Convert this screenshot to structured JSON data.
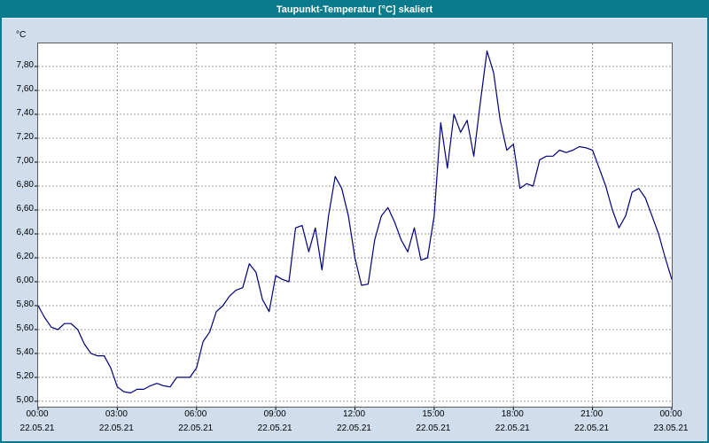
{
  "title_bar": {
    "title": "Taupunkt-Temperatur [°C] skaliert"
  },
  "colors": {
    "title_bar_bg": "#0a7b8c",
    "window_bg": "#cfdded",
    "plot_bg": "#ffffff",
    "line": "#000080",
    "grid": "#9b9b9b",
    "axis": "#000000"
  },
  "chart_data": {
    "type": "line",
    "title": "Taupunkt-Temperatur [°C] skaliert",
    "ylabel": "°C",
    "xlabel": "",
    "grid": "dashed",
    "legend": "none",
    "xlim": [
      0,
      24
    ],
    "ylim": [
      4.955,
      7.993
    ],
    "x_unit": "hours",
    "y_ticks": [
      {
        "value": 5.0,
        "label": "5,00"
      },
      {
        "value": 5.2,
        "label": "5,20"
      },
      {
        "value": 5.4,
        "label": "5,40"
      },
      {
        "value": 5.6,
        "label": "5,60"
      },
      {
        "value": 5.8,
        "label": "5,80"
      },
      {
        "value": 6.0,
        "label": "6,00"
      },
      {
        "value": 6.2,
        "label": "6,20"
      },
      {
        "value": 6.4,
        "label": "6,40"
      },
      {
        "value": 6.6,
        "label": "6,60"
      },
      {
        "value": 6.8,
        "label": "6,80"
      },
      {
        "value": 7.0,
        "label": "7,00"
      },
      {
        "value": 7.2,
        "label": "7,20"
      },
      {
        "value": 7.4,
        "label": "7,40"
      },
      {
        "value": 7.6,
        "label": "7,60"
      },
      {
        "value": 7.8,
        "label": "7,80"
      }
    ],
    "x_ticks": [
      {
        "hour": 0,
        "time": "00:00",
        "date": "22.05.21"
      },
      {
        "hour": 3,
        "time": "03:00",
        "date": "22.05.21"
      },
      {
        "hour": 6,
        "time": "06:00",
        "date": "22.05.21"
      },
      {
        "hour": 9,
        "time": "09:00",
        "date": "22.05.21"
      },
      {
        "hour": 12,
        "time": "12:00",
        "date": "22.05.21"
      },
      {
        "hour": 15,
        "time": "15:00",
        "date": "22.05.21"
      },
      {
        "hour": 18,
        "time": "18:00",
        "date": "22.05.21"
      },
      {
        "hour": 21,
        "time": "21:00",
        "date": "22.05.21"
      },
      {
        "hour": 24,
        "time": "00:00",
        "date": "23.05.21"
      }
    ],
    "x": [
      0,
      0.25,
      0.5,
      0.75,
      1,
      1.25,
      1.5,
      1.75,
      2,
      2.25,
      2.5,
      2.75,
      3,
      3.25,
      3.5,
      3.75,
      4,
      4.25,
      4.5,
      4.75,
      5,
      5.25,
      5.5,
      5.75,
      6,
      6.25,
      6.5,
      6.75,
      7,
      7.25,
      7.5,
      7.75,
      8,
      8.25,
      8.5,
      8.75,
      9,
      9.25,
      9.5,
      9.75,
      10,
      10.25,
      10.5,
      10.75,
      11,
      11.25,
      11.5,
      11.75,
      12,
      12.25,
      12.5,
      12.75,
      13,
      13.25,
      13.5,
      13.75,
      14,
      14.25,
      14.5,
      14.75,
      15,
      15.25,
      15.5,
      15.75,
      16,
      16.25,
      16.5,
      16.75,
      17,
      17.25,
      17.5,
      17.75,
      18,
      18.25,
      18.5,
      18.75,
      19,
      19.25,
      19.5,
      19.75,
      20,
      20.25,
      20.5,
      20.75,
      21,
      21.25,
      21.5,
      21.75,
      22,
      22.25,
      22.5,
      22.75,
      23,
      23.25,
      23.5,
      23.75,
      24
    ],
    "values": [
      5.8,
      5.7,
      5.62,
      5.6,
      5.65,
      5.65,
      5.6,
      5.48,
      5.4,
      5.38,
      5.38,
      5.28,
      5.12,
      5.08,
      5.07,
      5.1,
      5.1,
      5.13,
      5.15,
      5.13,
      5.12,
      5.2,
      5.2,
      5.2,
      5.28,
      5.5,
      5.58,
      5.75,
      5.8,
      5.88,
      5.93,
      5.95,
      6.15,
      6.08,
      5.85,
      5.75,
      6.05,
      6.02,
      6.0,
      6.45,
      6.47,
      6.25,
      6.45,
      6.1,
      6.55,
      6.88,
      6.78,
      6.55,
      6.2,
      5.97,
      5.98,
      6.35,
      6.55,
      6.62,
      6.5,
      6.35,
      6.25,
      6.45,
      6.18,
      6.2,
      6.55,
      7.33,
      6.95,
      7.4,
      7.25,
      7.35,
      7.05,
      7.5,
      7.93,
      7.75,
      7.35,
      7.1,
      7.15,
      6.78,
      6.82,
      6.8,
      7.02,
      7.05,
      7.05,
      7.1,
      7.08,
      7.1,
      7.13,
      7.12,
      7.1,
      6.95,
      6.8,
      6.6,
      6.45,
      6.55,
      6.75,
      6.78,
      6.7,
      6.55,
      6.4,
      6.2,
      6.02
    ]
  }
}
